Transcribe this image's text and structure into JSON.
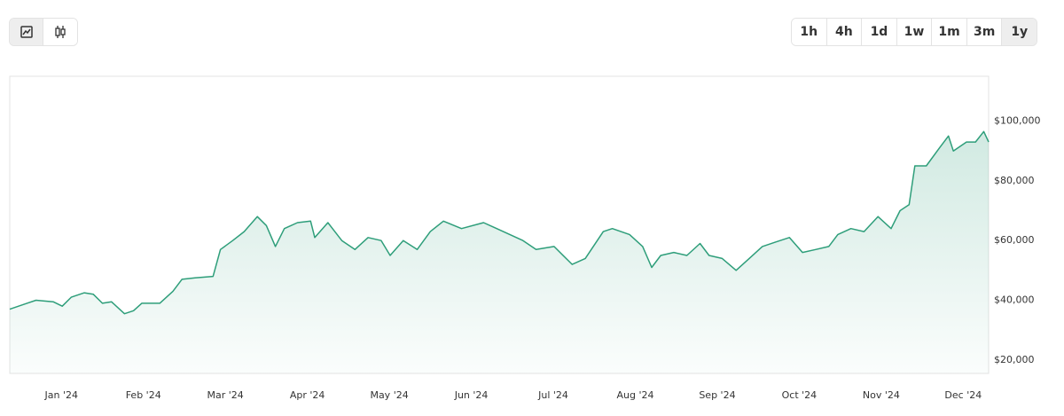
{
  "toolbar": {
    "ranges": [
      "1h",
      "4h",
      "1d",
      "1w",
      "1m",
      "3m",
      "1y"
    ],
    "active": 6
  },
  "chart_data": {
    "type": "area",
    "grid": false,
    "series": [
      {
        "color": "#2e9e7a",
        "x": [
          -0.63,
          -0.42,
          -0.31,
          -0.1,
          0.01,
          0.12,
          0.28,
          0.39,
          0.5,
          0.61,
          0.77,
          0.88,
          0.98,
          1.2,
          1.36,
          1.47,
          1.63,
          1.85,
          1.94,
          2.09,
          2.23,
          2.39,
          2.5,
          2.61,
          2.72,
          2.88,
          3.04,
          3.09,
          3.25,
          3.42,
          3.58,
          3.74,
          3.9,
          4.01,
          4.17,
          4.34,
          4.5,
          4.66,
          4.88,
          5.15,
          5.31,
          5.63,
          5.79,
          6.01,
          6.23,
          6.39,
          6.61,
          6.72,
          6.93,
          7.09,
          7.2,
          7.31,
          7.47,
          7.63,
          7.79,
          7.9,
          8.06,
          8.23,
          8.39,
          8.55,
          8.71,
          8.88,
          9.04,
          9.2,
          9.36,
          9.47,
          9.63,
          9.79,
          9.96,
          10.12,
          10.23,
          10.34,
          10.41,
          10.55,
          10.71,
          10.82,
          10.88,
          11.04,
          11.15,
          11.25,
          11.31
        ],
        "values": [
          37000,
          39000,
          40000,
          39500,
          38000,
          41000,
          42500,
          42000,
          39000,
          39500,
          35500,
          36500,
          39000,
          39000,
          43000,
          47000,
          47500,
          48000,
          57000,
          60000,
          63000,
          68000,
          65000,
          58000,
          64000,
          66000,
          66500,
          61000,
          66000,
          60000,
          57000,
          61000,
          60000,
          55000,
          60000,
          57000,
          63000,
          66500,
          64000,
          66000,
          64000,
          60000,
          57000,
          58000,
          52000,
          54000,
          63000,
          64000,
          62000,
          58000,
          51000,
          55000,
          56000,
          55000,
          59000,
          55000,
          54000,
          50000,
          54000,
          58000,
          59500,
          61000,
          56000,
          57000,
          58000,
          62000,
          64000,
          63000,
          68000,
          64000,
          70000,
          72000,
          85000,
          85000,
          91000,
          95000,
          90000,
          93000,
          93000,
          96500,
          93000
        ]
      }
    ],
    "xlim": [
      -0.63,
      11.31
    ],
    "xticks": [
      {
        "value": 0,
        "label": "Jan '24"
      },
      {
        "value": 1,
        "label": "Feb '24"
      },
      {
        "value": 2,
        "label": "Mar '24"
      },
      {
        "value": 3,
        "label": "Apr '24"
      },
      {
        "value": 4,
        "label": "May '24"
      },
      {
        "value": 5,
        "label": "Jun '24"
      },
      {
        "value": 6,
        "label": "Jul '24"
      },
      {
        "value": 7,
        "label": "Aug '24"
      },
      {
        "value": 8,
        "label": "Sep '24"
      },
      {
        "value": 9,
        "label": "Oct '24"
      },
      {
        "value": 10,
        "label": "Nov '24"
      },
      {
        "value": 11,
        "label": "Dec '24"
      }
    ],
    "ylim": [
      15500,
      115000
    ],
    "yticks": [
      {
        "value": 20000,
        "label": "$20,000"
      },
      {
        "value": 40000,
        "label": "$40,000"
      },
      {
        "value": 60000,
        "label": "$60,000"
      },
      {
        "value": 80000,
        "label": "$80,000"
      },
      {
        "value": 100000,
        "label": "$100,000"
      }
    ]
  }
}
